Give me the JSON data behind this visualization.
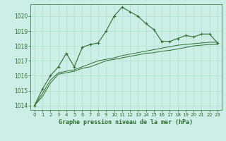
{
  "title": "Graphe pression niveau de la mer (hPa)",
  "background_color": "#cceee6",
  "grid_color": "#aaddcc",
  "line_color": "#2d6e2d",
  "marker_color": "#2d6e2d",
  "xlim": [
    -0.5,
    23.5
  ],
  "ylim": [
    1013.7,
    1020.8
  ],
  "yticks": [
    1014,
    1015,
    1016,
    1017,
    1018,
    1019,
    1020
  ],
  "xticks": [
    0,
    1,
    2,
    3,
    4,
    5,
    6,
    7,
    8,
    9,
    10,
    11,
    12,
    13,
    14,
    15,
    16,
    17,
    18,
    19,
    20,
    21,
    22,
    23
  ],
  "series1": [
    1014.0,
    1015.1,
    1016.0,
    1016.6,
    1017.5,
    1016.6,
    1017.9,
    1018.1,
    1018.2,
    1019.0,
    1020.0,
    1020.6,
    1020.3,
    1020.0,
    1019.5,
    1019.1,
    1018.3,
    1018.3,
    1018.5,
    1018.7,
    1018.6,
    1018.8,
    1018.8,
    1018.2
  ],
  "series2": [
    1014.0,
    1014.6,
    1015.5,
    1016.1,
    1016.2,
    1016.3,
    1016.5,
    1016.6,
    1016.8,
    1017.0,
    1017.1,
    1017.2,
    1017.3,
    1017.4,
    1017.5,
    1017.55,
    1017.65,
    1017.7,
    1017.8,
    1017.9,
    1018.0,
    1018.05,
    1018.1,
    1018.1
  ],
  "series3": [
    1014.0,
    1014.8,
    1015.7,
    1016.2,
    1016.3,
    1016.4,
    1016.6,
    1016.8,
    1017.0,
    1017.1,
    1017.2,
    1017.35,
    1017.45,
    1017.55,
    1017.65,
    1017.75,
    1017.85,
    1017.95,
    1018.05,
    1018.1,
    1018.15,
    1018.2,
    1018.25,
    1018.25
  ]
}
